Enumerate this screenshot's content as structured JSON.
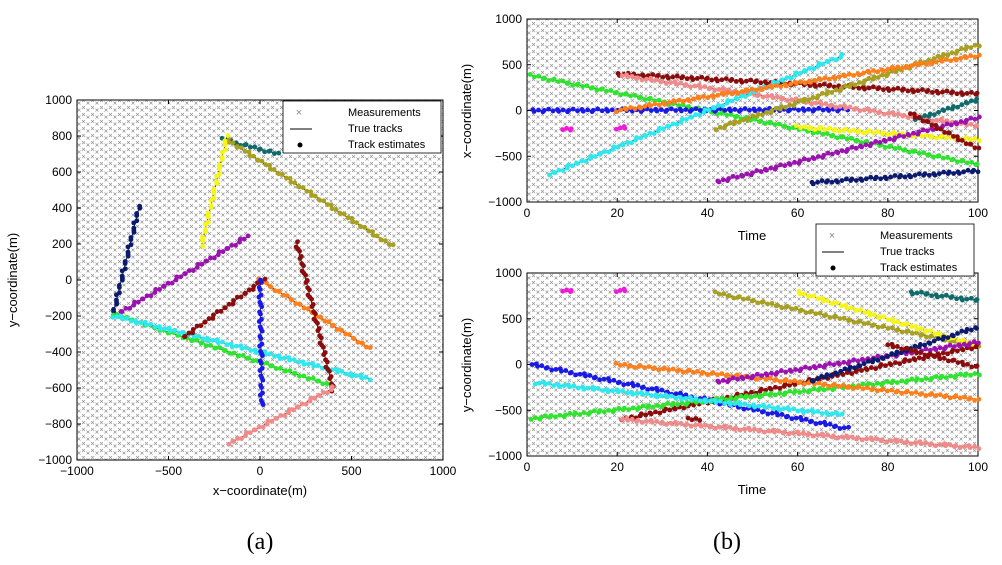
{
  "chart_data": [
    {
      "type": "scatter",
      "id": "a",
      "panel_label": "(a)",
      "xlabel": "x−coordinate(m)",
      "ylabel": "y−coordinate(m)",
      "xlim": [
        -1000,
        1000
      ],
      "ylim": [
        -1000,
        1000
      ],
      "xticks": [
        -1000,
        -500,
        0,
        500,
        1000
      ],
      "yticks": [
        -1000,
        -800,
        -600,
        -400,
        -200,
        0,
        200,
        400,
        600,
        800,
        1000
      ],
      "xtick_labels": [
        "−1000",
        "−500",
        "0",
        "500",
        "1000"
      ],
      "ytick_labels": [
        "−1000",
        "−800",
        "−600",
        "−400",
        "−200",
        "0",
        "200",
        "400",
        "600",
        "800",
        "1000"
      ],
      "legend": [
        "Measurements",
        "True tracks",
        "Track estimates"
      ],
      "legend_position": "top-right",
      "tracks": [
        {
          "color": "#0f6b6b",
          "start": [
            -200,
            780
          ],
          "end": [
            100,
            700
          ]
        },
        {
          "color": "#a8a020",
          "start": [
            -180,
            780
          ],
          "end": [
            720,
            190
          ]
        },
        {
          "color": "#f5f51a",
          "start": [
            -180,
            800
          ],
          "end": [
            -320,
            190
          ]
        },
        {
          "color": "#0b1a6e",
          "start": [
            -660,
            410
          ],
          "end": [
            -800,
            -180
          ]
        },
        {
          "color": "#9b12b0",
          "start": [
            -780,
            -190
          ],
          "end": [
            -70,
            240
          ]
        },
        {
          "color": "#2ee52e",
          "start": [
            -800,
            -190
          ],
          "end": [
            400,
            -590
          ]
        },
        {
          "color": "#2ee8f0",
          "start": [
            -800,
            -200
          ],
          "end": [
            600,
            -550
          ]
        },
        {
          "color": "#ff7f1a",
          "start": [
            0,
            0
          ],
          "end": [
            600,
            -380
          ]
        },
        {
          "color": "#8a0c0c",
          "start": [
            -420,
            -320
          ],
          "end": [
            20,
            0
          ]
        },
        {
          "color": "#8a0c0c",
          "start": [
            200,
            210
          ],
          "end": [
            400,
            -610
          ]
        },
        {
          "color": "#1a1ae8",
          "start": [
            0,
            0
          ],
          "end": [
            10,
            -700
          ]
        },
        {
          "color": "#f28a8a",
          "start": [
            -170,
            -910
          ],
          "end": [
            400,
            -600
          ]
        }
      ]
    },
    {
      "type": "scatter",
      "id": "b1",
      "panel_label": "(b)",
      "xlabel": "Time",
      "ylabel": "x−coordinate(m)",
      "xlim": [
        0,
        100
      ],
      "ylim": [
        -1000,
        1000
      ],
      "xticks": [
        0,
        20,
        40,
        60,
        80,
        100
      ],
      "yticks": [
        -1000,
        -500,
        0,
        500,
        1000
      ],
      "xtick_labels": [
        "0",
        "20",
        "40",
        "60",
        "80",
        "100"
      ],
      "ytick_labels": [
        "−1000",
        "−500",
        "0",
        "500",
        "1000"
      ],
      "tracks": [
        {
          "color": "#2ee52e",
          "start": [
            1,
            380
          ],
          "end": [
            100,
            -590
          ]
        },
        {
          "color": "#1a1ae8",
          "start": [
            1,
            0
          ],
          "end": [
            71,
            10
          ]
        },
        {
          "color": "#8a0c0c",
          "start": [
            20,
            400
          ],
          "end": [
            100,
            180
          ]
        },
        {
          "color": "#f28a8a",
          "start": [
            21,
            380
          ],
          "end": [
            100,
            -170
          ]
        },
        {
          "color": "#2ee8f0",
          "start": [
            5,
            -700
          ],
          "end": [
            70,
            600
          ]
        },
        {
          "color": "#a8a020",
          "start": [
            42,
            -200
          ],
          "end": [
            100,
            720
          ]
        },
        {
          "color": "#ff7f1a",
          "start": [
            20,
            0
          ],
          "end": [
            100,
            600
          ]
        },
        {
          "color": "#f5f51a",
          "start": [
            60,
            -180
          ],
          "end": [
            100,
            -320
          ]
        },
        {
          "color": "#9b12b0",
          "start": [
            42,
            -780
          ],
          "end": [
            100,
            -80
          ]
        },
        {
          "color": "#0b1a6e",
          "start": [
            63,
            -790
          ],
          "end": [
            100,
            -660
          ]
        },
        {
          "color": "#0f6b6b",
          "start": [
            86,
            -100
          ],
          "end": [
            100,
            120
          ]
        },
        {
          "color": "#8a0c0c",
          "start": [
            85,
            -30
          ],
          "end": [
            100,
            -420
          ]
        },
        {
          "color": "#f01ad8",
          "start": [
            8,
            -200
          ],
          "end": [
            10,
            -200
          ]
        },
        {
          "color": "#f01ad8",
          "start": [
            20,
            -190
          ],
          "end": [
            22,
            -190
          ]
        }
      ]
    },
    {
      "type": "scatter",
      "id": "b2",
      "panel_label": "",
      "xlabel": "Time",
      "ylabel": "y−coordinate(m)",
      "xlim": [
        0,
        100
      ],
      "ylim": [
        -1000,
        1000
      ],
      "xticks": [
        0,
        20,
        40,
        60,
        80,
        100
      ],
      "yticks": [
        -1000,
        -500,
        0,
        500,
        1000
      ],
      "xtick_labels": [
        "0",
        "20",
        "40",
        "60",
        "80",
        "100"
      ],
      "ytick_labels": [
        "−1000",
        "−500",
        "0",
        "500",
        "1000"
      ],
      "legend": [
        "Measurements",
        "True tracks",
        "Track estimates"
      ],
      "legend_position": "top-right",
      "tracks": [
        {
          "color": "#a8a020",
          "start": [
            42,
            780
          ],
          "end": [
            100,
            200
          ]
        },
        {
          "color": "#f5f51a",
          "start": [
            60,
            790
          ],
          "end": [
            100,
            200
          ]
        },
        {
          "color": "#0f6b6b",
          "start": [
            85,
            790
          ],
          "end": [
            100,
            700
          ]
        },
        {
          "color": "#1a1ae8",
          "start": [
            1,
            0
          ],
          "end": [
            71,
            -700
          ]
        },
        {
          "color": "#8a0c0c",
          "start": [
            21,
            -600
          ],
          "end": [
            100,
            200
          ]
        },
        {
          "color": "#2ee52e",
          "start": [
            1,
            -590
          ],
          "end": [
            100,
            -100
          ]
        },
        {
          "color": "#2ee8f0",
          "start": [
            2,
            -200
          ],
          "end": [
            70,
            -550
          ]
        },
        {
          "color": "#ff7f1a",
          "start": [
            20,
            0
          ],
          "end": [
            100,
            -380
          ]
        },
        {
          "color": "#9b12b0",
          "start": [
            42,
            -190
          ],
          "end": [
            100,
            240
          ]
        },
        {
          "color": "#0b1a6e",
          "start": [
            63,
            -180
          ],
          "end": [
            100,
            410
          ]
        },
        {
          "color": "#f28a8a",
          "start": [
            21,
            -600
          ],
          "end": [
            100,
            -910
          ]
        },
        {
          "color": "#8a0c0c",
          "start": [
            80,
            220
          ],
          "end": [
            100,
            -30
          ]
        },
        {
          "color": "#f01ad8",
          "start": [
            8,
            810
          ],
          "end": [
            10,
            810
          ]
        },
        {
          "color": "#f01ad8",
          "start": [
            20,
            810
          ],
          "end": [
            22,
            810
          ]
        },
        {
          "color": "#8a0c0c",
          "start": [
            36,
            -600
          ],
          "end": [
            38,
            -600
          ]
        }
      ]
    }
  ]
}
